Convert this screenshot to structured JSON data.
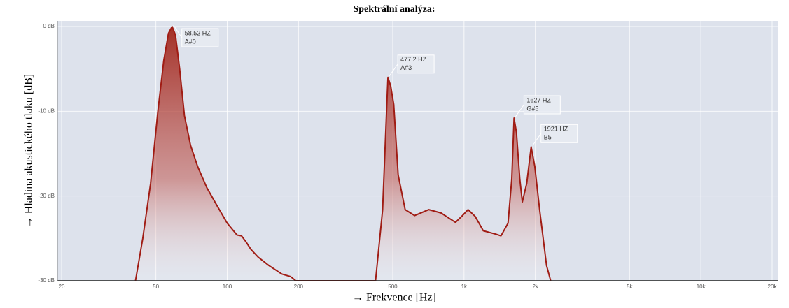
{
  "chart_data": {
    "type": "area",
    "title": "Spektrální analýza:",
    "x_label": "→ Frekvence [Hz]",
    "y_label": "→ Hladina akustického tlaku [dB]",
    "x_scale": "log",
    "xlim": [
      20,
      20000
    ],
    "ylim": [
      -30,
      0
    ],
    "xticks": [
      20,
      50,
      100,
      200,
      500,
      {
        "value": 1000,
        "label": "1k"
      },
      {
        "value": 2000,
        "label": "2k"
      },
      {
        "value": 5000,
        "label": "5k"
      },
      {
        "value": 10000,
        "label": "10k"
      },
      {
        "value": 20000,
        "label": "20k"
      }
    ],
    "yticks": [
      {
        "value": 0,
        "label": "0 dB"
      },
      {
        "value": -10,
        "label": "-10 dB"
      },
      {
        "value": -20,
        "label": "-20 dB"
      },
      {
        "value": -30,
        "label": "-30 dB"
      }
    ],
    "grid": true,
    "color": "#a01c14",
    "x": [
      41,
      44,
      47.5,
      51,
      54,
      56.5,
      58.52,
      60.5,
      63,
      66,
      70,
      75,
      82,
      90,
      100,
      110,
      115,
      120,
      126,
      135,
      150,
      170,
      185,
      195,
      423,
      453,
      472,
      477.2,
      490,
      505,
      527,
      564,
      619,
      710,
      800,
      920,
      985,
      1040,
      1114,
      1206,
      1365,
      1432,
      1534,
      1590,
      1627,
      1665,
      1720,
      1762,
      1840,
      1921,
      1990,
      2085,
      2230,
      2322
    ],
    "values": [
      -30,
      -25,
      -18.5,
      -10,
      -4,
      -0.8,
      0,
      -1,
      -5,
      -10.5,
      -14,
      -16.5,
      -19,
      -21,
      -23.2,
      -24.6,
      -24.7,
      -25.4,
      -26.3,
      -27.2,
      -28.2,
      -29.2,
      -29.5,
      -30,
      -30,
      -21.6,
      -9.2,
      -6,
      -7,
      -9.2,
      -17.5,
      -21.6,
      -22.3,
      -21.6,
      -22,
      -23.1,
      -22.3,
      -21.6,
      -22.4,
      -24.1,
      -24.5,
      -24.7,
      -23.2,
      -18,
      -10.8,
      -12.5,
      -18,
      -20.7,
      -18.5,
      -14.2,
      -16.5,
      -21.6,
      -28.2,
      -30
    ],
    "annotations": [
      {
        "x": 58.52,
        "y": 0,
        "label": "58.52 HZ",
        "note": "A#0"
      },
      {
        "x": 477.2,
        "y": -6,
        "label": "477.2 HZ",
        "note": "A#3"
      },
      {
        "x": 1627,
        "y": -10.8,
        "label": "1627 HZ",
        "note": "G#5"
      },
      {
        "x": 1921,
        "y": -14.2,
        "label": "1921 HZ",
        "note": "B5"
      }
    ]
  }
}
